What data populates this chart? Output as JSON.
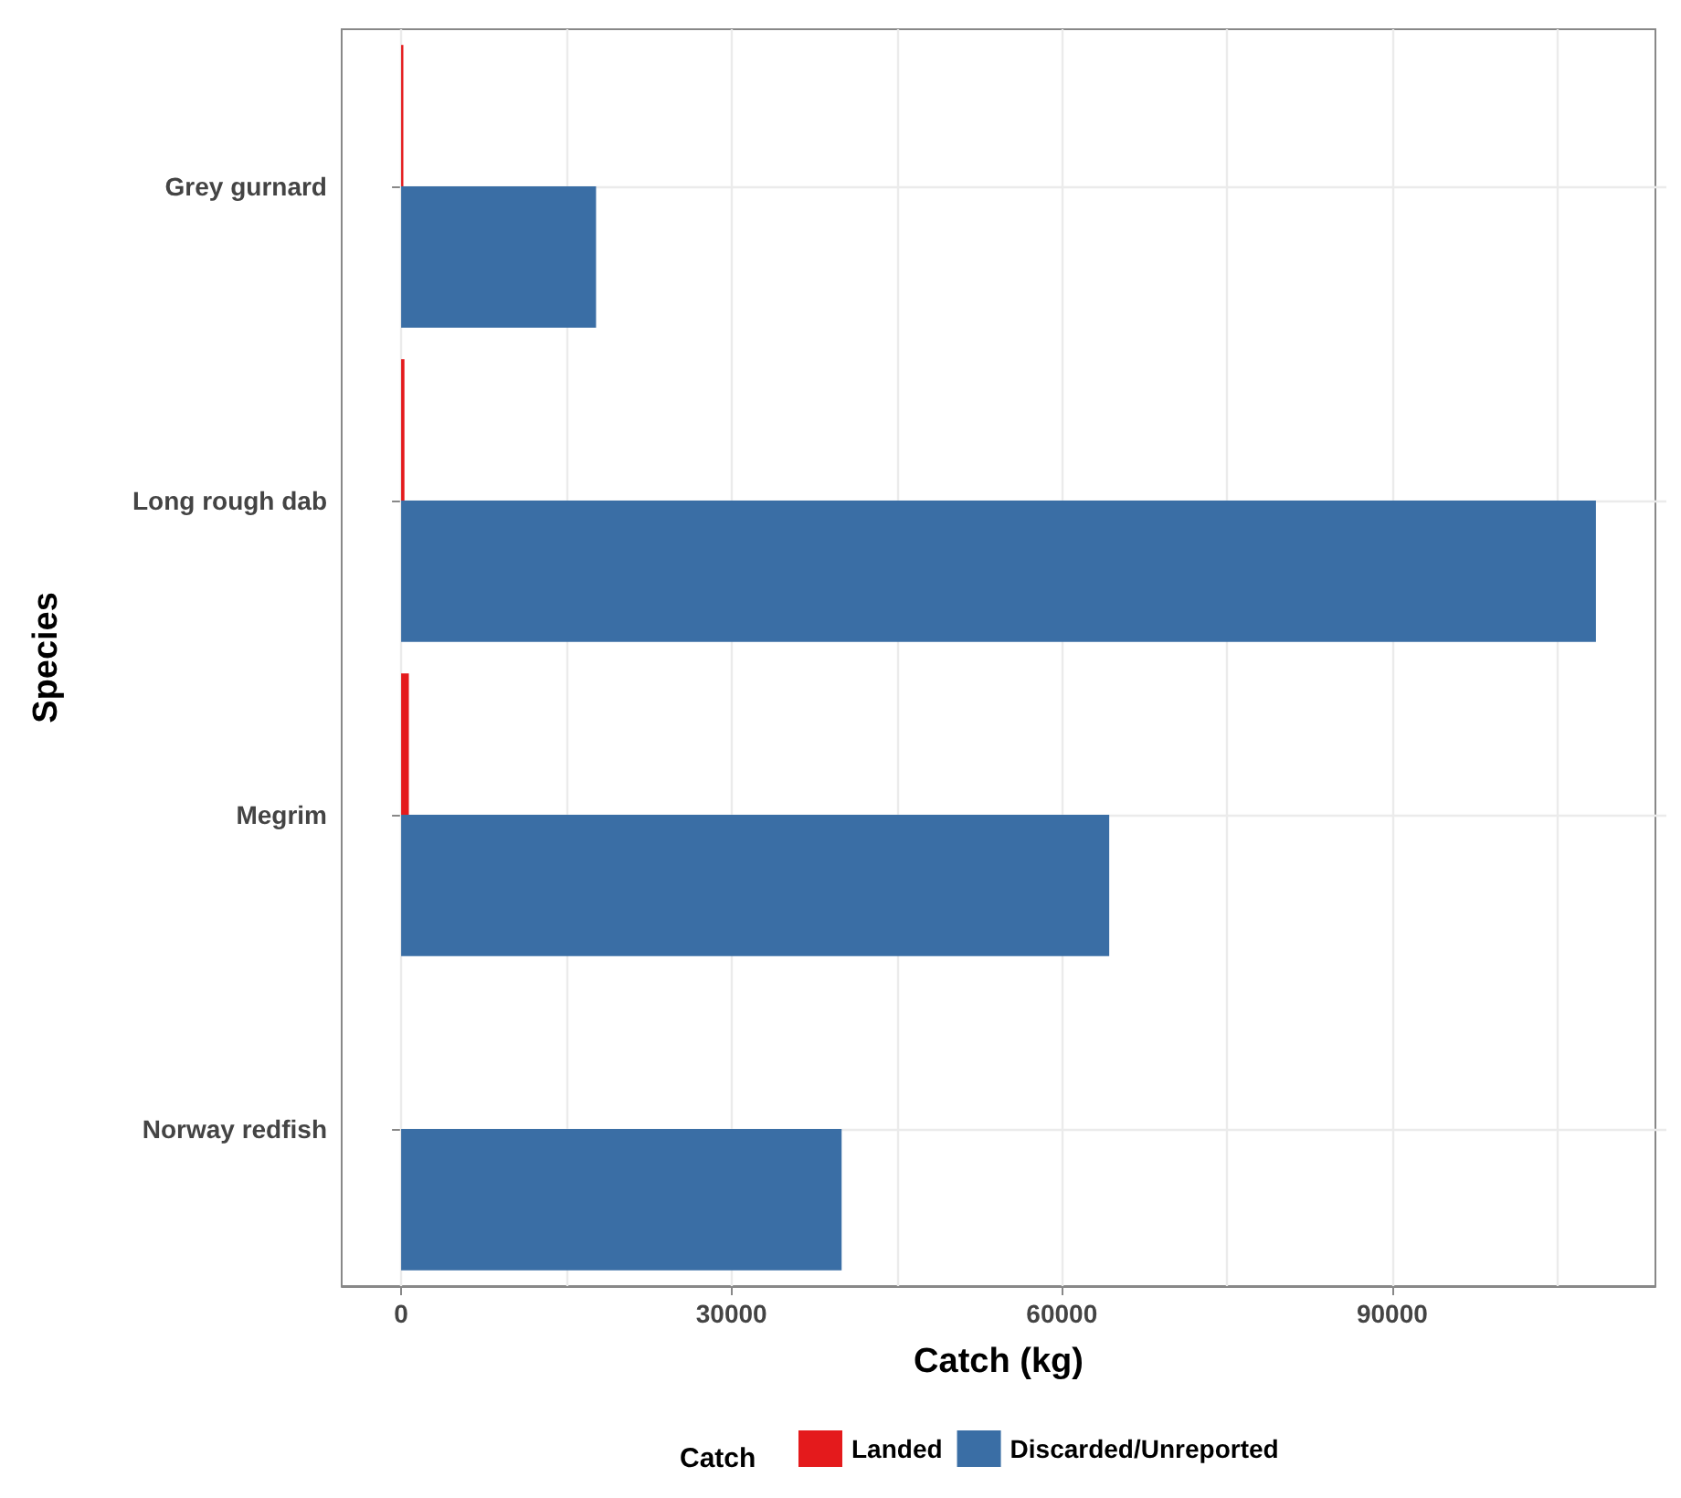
{
  "chart_data": {
    "type": "bar",
    "orientation": "horizontal",
    "xlabel": "Catch (kg)",
    "ylabel": "Species",
    "legend_title": "Catch",
    "categories": [
      "Grey gurnard",
      "Long rough dab",
      "Megrim",
      "Norway redfish"
    ],
    "series": [
      {
        "name": "Landed",
        "color": "#e41a1c",
        "values": [
          200,
          300,
          700,
          0
        ]
      },
      {
        "name": "Discarded/Unreported",
        "color": "#3a6ea5",
        "values": [
          17700,
          108500,
          64300,
          40000
        ]
      }
    ],
    "xlim": [
      -5400,
      113900
    ],
    "xticks": [
      0,
      {
        "value": 15000,
        "label": null
      },
      30000,
      {
        "value": 45000,
        "label": null
      },
      60000,
      {
        "value": 75000,
        "label": null
      },
      90000,
      {
        "value": 105000,
        "label": null
      }
    ],
    "grid": true,
    "legend": "bottom"
  }
}
